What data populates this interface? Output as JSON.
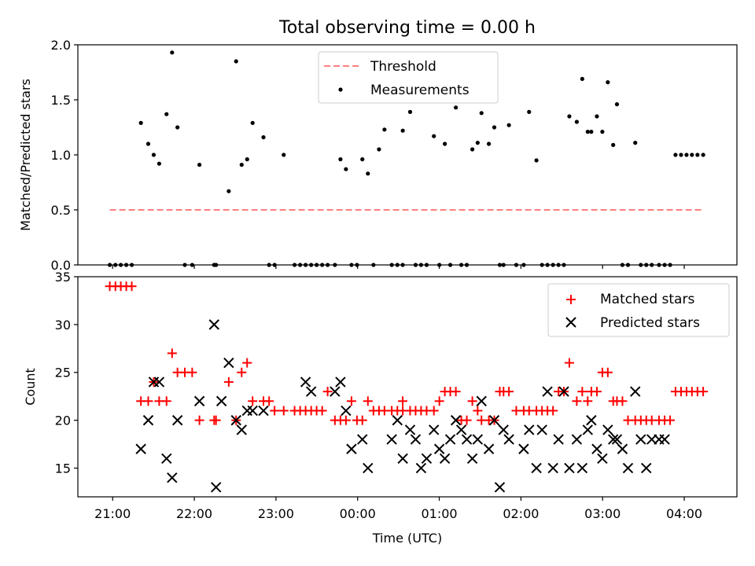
{
  "chart_data": [
    {
      "type": "scatter",
      "title": "Total observing time = 0.00 h",
      "xlabel": "",
      "ylabel": "Matched/Predicted stars",
      "ylim": [
        0,
        2.0
      ],
      "yticks": [
        "0.0",
        "0.5",
        "1.0",
        "1.5",
        "2.0"
      ],
      "legend": {
        "placement": "top-center",
        "entries": [
          "Threshold",
          "Measurements"
        ]
      },
      "threshold": {
        "name": "Threshold",
        "y": 0.5,
        "x_range": [
          -0.035,
          7.232
        ],
        "color": "#ff7f7f",
        "style": "dashed"
      },
      "series": [
        {
          "name": "Measurements",
          "color": "#000000",
          "x": [
            -0.035,
            0.034,
            0.1,
            0.167,
            0.234,
            0.346,
            0.436,
            0.503,
            0.57,
            0.66,
            0.728,
            0.794,
            0.884,
            0.974,
            1.063,
            1.243,
            1.266,
            1.422,
            1.512,
            1.58,
            1.647,
            1.714,
            1.847,
            1.916,
            1.983,
            2.095,
            2.228,
            2.296,
            2.363,
            2.431,
            2.498,
            2.566,
            2.633,
            2.722,
            2.79,
            2.857,
            2.925,
            2.992,
            3.058,
            3.126,
            3.194,
            3.262,
            3.329,
            3.418,
            3.487,
            3.552,
            3.553,
            3.643,
            3.71,
            3.777,
            3.845,
            3.934,
            4.001,
            4.068,
            4.135,
            4.203,
            4.27,
            4.337,
            4.405,
            4.47,
            4.517,
            4.607,
            4.674,
            4.741,
            4.787,
            4.853,
            4.943,
            5.034,
            5.1,
            5.19,
            5.258,
            5.325,
            5.393,
            5.46,
            5.526,
            5.593,
            5.684,
            5.751,
            5.818,
            5.862,
            5.93,
            5.997,
            6.064,
            6.13,
            6.176,
            6.243,
            6.311,
            6.4,
            6.468,
            6.535,
            6.602,
            6.691,
            6.76,
            6.827,
            6.893,
            6.961,
            7.028,
            7.094,
            7.162,
            7.232
          ],
          "y": [
            0,
            0,
            0,
            0,
            0,
            1.29,
            1.1,
            1.0,
            0.92,
            1.37,
            1.93,
            1.25,
            0,
            0,
            0.91,
            0,
            0,
            0.67,
            1.85,
            0.91,
            0.96,
            1.29,
            1.16,
            0,
            0,
            1.0,
            0,
            0,
            0,
            0,
            0,
            0,
            0,
            0,
            0.96,
            0.87,
            0,
            0,
            0.96,
            0.83,
            0,
            1.05,
            1.23,
            0,
            0,
            0,
            1.22,
            1.39,
            0,
            0,
            0,
            1.17,
            0,
            1.1,
            0,
            1.43,
            0,
            0,
            1.05,
            1.11,
            1.38,
            1.1,
            1.25,
            0,
            0,
            1.27,
            0,
            0,
            1.39,
            0.95,
            0,
            0,
            0,
            0,
            0,
            1.35,
            1.3,
            1.69,
            1.21,
            1.21,
            1.35,
            1.21,
            1.66,
            1.09,
            1.46,
            0,
            0,
            1.11,
            0,
            0,
            0,
            0,
            0,
            0,
            1.0,
            1.0,
            1.0,
            1.0,
            1.0,
            1.0
          ]
        }
      ]
    },
    {
      "type": "scatter",
      "title": "",
      "xlabel": "Time (UTC)",
      "ylabel": "Count",
      "ylim": [
        12,
        35
      ],
      "yticks": [
        "15",
        "20",
        "25",
        "30",
        "35"
      ],
      "xlim": [
        -0.426,
        7.645
      ],
      "xticks": [
        {
          "x": 0,
          "label": "21:00"
        },
        {
          "x": 1,
          "label": "22:00"
        },
        {
          "x": 2,
          "label": "23:00"
        },
        {
          "x": 3,
          "label": "00:00"
        },
        {
          "x": 4,
          "label": "01:00"
        },
        {
          "x": 5,
          "label": "02:00"
        },
        {
          "x": 6,
          "label": "03:00"
        },
        {
          "x": 7,
          "label": "04:00"
        }
      ],
      "legend": {
        "placement": "top-right",
        "entries": [
          "Matched stars",
          "Predicted stars"
        ]
      },
      "series": [
        {
          "name": "Matched stars",
          "color": "#ff0000",
          "marker": "+",
          "x": [
            -0.035,
            0.034,
            0.1,
            0.167,
            0.234,
            0.346,
            0.436,
            0.503,
            0.57,
            0.66,
            0.728,
            0.794,
            0.884,
            0.974,
            1.063,
            1.243,
            1.266,
            1.422,
            1.512,
            1.58,
            1.647,
            1.714,
            1.847,
            1.916,
            1.983,
            2.095,
            2.228,
            2.296,
            2.363,
            2.431,
            2.498,
            2.566,
            2.633,
            2.722,
            2.79,
            2.857,
            2.925,
            2.992,
            3.058,
            3.126,
            3.194,
            3.262,
            3.329,
            3.418,
            3.487,
            3.552,
            3.553,
            3.643,
            3.71,
            3.777,
            3.845,
            3.934,
            4.001,
            4.068,
            4.135,
            4.203,
            4.27,
            4.337,
            4.405,
            4.47,
            4.517,
            4.607,
            4.674,
            4.741,
            4.787,
            4.853,
            4.943,
            5.034,
            5.1,
            5.19,
            5.258,
            5.325,
            5.393,
            5.46,
            5.526,
            5.593,
            5.684,
            5.751,
            5.818,
            5.862,
            5.93,
            5.997,
            6.064,
            6.13,
            6.176,
            6.243,
            6.311,
            6.4,
            6.468,
            6.535,
            6.602,
            6.691,
            6.76,
            6.827,
            6.893,
            6.961,
            7.028,
            7.094,
            7.162,
            7.232
          ],
          "y": [
            34,
            34,
            34,
            34,
            34,
            22,
            22,
            24,
            22,
            22,
            27,
            25,
            25,
            25,
            20,
            20,
            20,
            24,
            20,
            25,
            26,
            22,
            22,
            22,
            21,
            21,
            21,
            21,
            21,
            21,
            21,
            21,
            23,
            20,
            20,
            20,
            22,
            20,
            20,
            22,
            21,
            21,
            21,
            21,
            21,
            22,
            21,
            21,
            21,
            21,
            21,
            21,
            22,
            23,
            23,
            23,
            20,
            20,
            22,
            21,
            20,
            20,
            20,
            23,
            23,
            23,
            21,
            21,
            21,
            21,
            21,
            21,
            21,
            23,
            23,
            26,
            22,
            23,
            22,
            23,
            23,
            25,
            25,
            22,
            22,
            22,
            20,
            20,
            20,
            20,
            20,
            20,
            20,
            20,
            23,
            23,
            23,
            23,
            23,
            23
          ]
        },
        {
          "name": "Predicted stars",
          "color": "#000000",
          "marker": "x",
          "x": [
            0.346,
            0.436,
            0.503,
            0.57,
            0.66,
            0.728,
            0.794,
            1.063,
            1.243,
            1.266,
            1.333,
            1.422,
            1.512,
            1.58,
            1.647,
            1.714,
            1.847,
            2.363,
            2.431,
            2.722,
            2.79,
            2.857,
            2.925,
            3.058,
            3.126,
            3.418,
            3.487,
            3.553,
            3.643,
            3.71,
            3.777,
            3.845,
            3.934,
            4.001,
            4.068,
            4.135,
            4.203,
            4.27,
            4.337,
            4.405,
            4.47,
            4.517,
            4.607,
            4.674,
            4.741,
            4.787,
            4.853,
            5.034,
            5.1,
            5.19,
            5.258,
            5.325,
            5.393,
            5.46,
            5.526,
            5.593,
            5.684,
            5.751,
            5.818,
            5.862,
            5.93,
            5.997,
            6.064,
            6.13,
            6.176,
            6.243,
            6.311,
            6.4,
            6.468,
            6.535,
            6.602,
            6.691,
            6.76
          ],
          "y": [
            17,
            20,
            24,
            24,
            16,
            14,
            20,
            22,
            30,
            13,
            22,
            26,
            20,
            19,
            21,
            21,
            21,
            24,
            23,
            23,
            24,
            21,
            17,
            18,
            15,
            18,
            20,
            16,
            19,
            18,
            15,
            16,
            19,
            17,
            16,
            18,
            20,
            19,
            18,
            16,
            18,
            22,
            17,
            20,
            13,
            19,
            18,
            17,
            19,
            15,
            19,
            23,
            15,
            18,
            23,
            15,
            18,
            15,
            19,
            20,
            17,
            16,
            19,
            18,
            18,
            17,
            15,
            23,
            18,
            15,
            18,
            18,
            18
          ]
        }
      ]
    }
  ]
}
